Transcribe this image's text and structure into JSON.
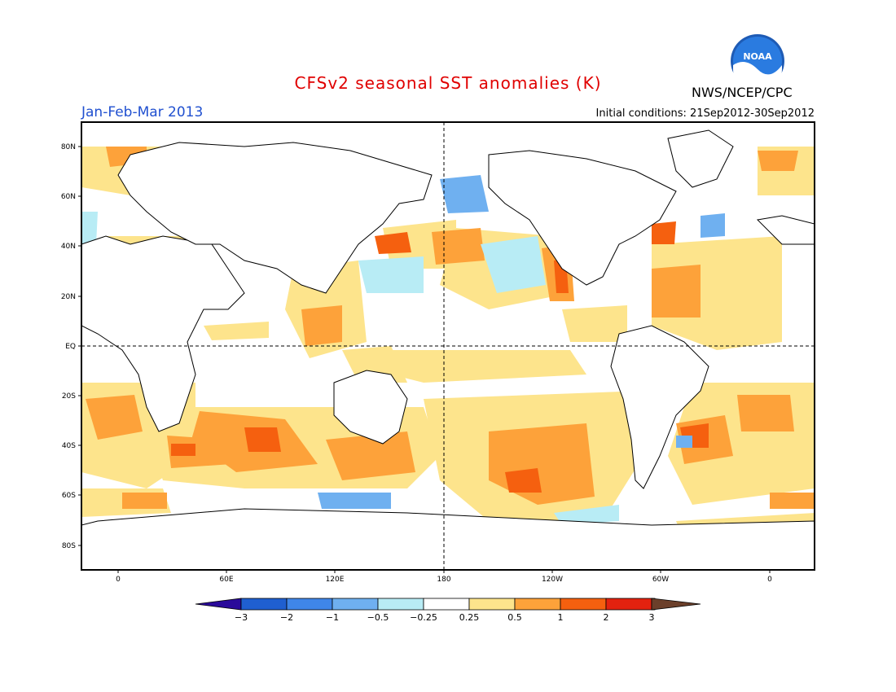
{
  "header": {
    "title": "CFSv2 seasonal SST anomalies (K)",
    "period": "Jan-Feb-Mar 2013",
    "initial_conditions": "Initial conditions: 21Sep2012-30Sep2012",
    "agency": "NWS/NCEP/CPC",
    "logo_text": "NOAA"
  },
  "map": {
    "lat_labels": [
      "80N",
      "60N",
      "40N",
      "20N",
      "EQ",
      "20S",
      "40S",
      "60S",
      "80S"
    ],
    "lon_labels": [
      "0",
      "60E",
      "120E",
      "180",
      "120W",
      "60W",
      "0"
    ]
  },
  "colorbar": {
    "tick_labels": [
      "-3",
      "-2",
      "-1",
      "-0.5",
      "-0.25",
      "0.25",
      "0.5",
      "1",
      "2",
      "3"
    ],
    "colors": [
      "#2a0a9a",
      "#1f5fd0",
      "#3f86e8",
      "#6fb0f0",
      "#b8ecf5",
      "#ffffff",
      "#fde48c",
      "#fda23a",
      "#f5600f",
      "#e3220f",
      "#a80e0e",
      "#6b3f2a"
    ]
  }
}
